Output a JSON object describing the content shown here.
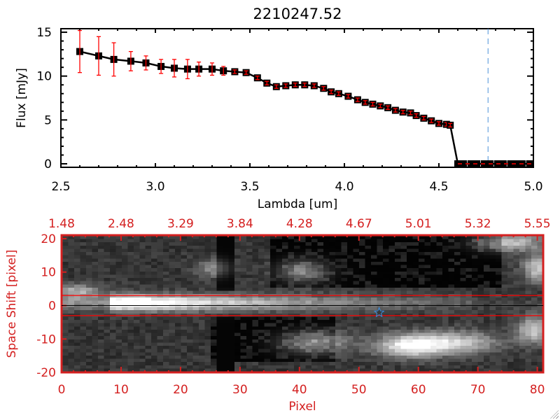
{
  "chart_data": [
    {
      "type": "line",
      "title": "2210247.52",
      "xlabel": "Lambda [um]",
      "ylabel": "Flux [mJy]",
      "xlim": [
        2.5,
        5.0
      ],
      "ylim": [
        -0.4,
        15.4
      ],
      "xticks": [
        "2.5",
        "3.0",
        "3.5",
        "4.0",
        "4.5",
        "5.0"
      ],
      "yticks": [
        "0",
        "5",
        "10",
        "15"
      ],
      "series": [
        {
          "x": [
            2.6,
            2.7,
            2.78,
            2.87,
            2.95,
            3.03,
            3.1,
            3.17,
            3.23,
            3.3,
            3.36,
            3.42,
            3.48,
            3.54,
            3.59,
            3.64,
            3.69,
            3.74,
            3.79,
            3.84,
            3.89,
            3.93,
            3.97,
            4.02,
            4.07,
            4.11,
            4.15,
            4.19,
            4.23,
            4.27,
            4.31,
            4.35,
            4.38,
            4.42,
            4.46,
            4.5,
            4.54,
            4.56,
            4.6,
            4.63,
            4.67,
            4.7,
            4.74,
            4.77,
            4.81,
            4.84,
            4.88,
            4.91,
            4.94,
            4.98
          ],
          "y": [
            12.8,
            12.3,
            11.9,
            11.7,
            11.5,
            11.1,
            10.9,
            10.8,
            10.8,
            10.8,
            10.6,
            10.5,
            10.4,
            9.8,
            9.2,
            8.8,
            8.9,
            9.0,
            9.0,
            8.9,
            8.6,
            8.2,
            8.0,
            7.7,
            7.3,
            7.0,
            6.8,
            6.6,
            6.4,
            6.1,
            5.9,
            5.8,
            5.5,
            5.2,
            4.9,
            4.6,
            4.5,
            4.4,
            0,
            0,
            0,
            0,
            0,
            0,
            0,
            0,
            0,
            0,
            0,
            0
          ],
          "err": [
            2.4,
            2.2,
            1.9,
            1.1,
            0.8,
            0.8,
            1.0,
            1.1,
            0.8,
            0.7,
            0.5,
            0.2,
            0.2,
            0.2,
            0.2,
            0.2,
            0.2,
            0.2,
            0.2,
            0.2,
            0.2,
            0.2,
            0.2,
            0.2,
            0.2,
            0.2,
            0.2,
            0.2,
            0.2,
            0.2,
            0.2,
            0.2,
            0.2,
            0.2,
            0.2,
            0.2,
            0.2,
            0.2,
            0,
            0,
            0,
            0,
            0,
            0,
            0,
            0,
            0,
            0,
            0,
            0
          ]
        }
      ],
      "vline_x": 4.76,
      "zero_line_from": 4.6,
      "colors": {
        "line": "#000000",
        "errorbar": "#ff0000",
        "vline": "#4a90d9",
        "zero_line": "#ff0000"
      }
    },
    {
      "type": "heatmap",
      "xlabel": "Pixel",
      "ylabel": "Space Shift [pixel]",
      "xlim": [
        0,
        81
      ],
      "ylim": [
        -21,
        21
      ],
      "xticks": [
        "0",
        "10",
        "20",
        "30",
        "40",
        "50",
        "60",
        "70",
        "80"
      ],
      "yticks": [
        "-20",
        "-10",
        "0",
        "10",
        "20"
      ],
      "top_tick_labels": [
        "1.48",
        "2.48",
        "3.29",
        "3.84",
        "4.28",
        "4.67",
        "5.01",
        "5.32",
        "5.55"
      ],
      "aperture_lines_y": [
        3,
        -3
      ],
      "center_line_y": 0,
      "marker": {
        "symbol": "star",
        "x": 53.4,
        "y": -2.1,
        "color": "#3a8ee0"
      },
      "colormap": "gray",
      "colors": {
        "axes": "#d42020",
        "aperture": "#ff0000"
      }
    }
  ]
}
